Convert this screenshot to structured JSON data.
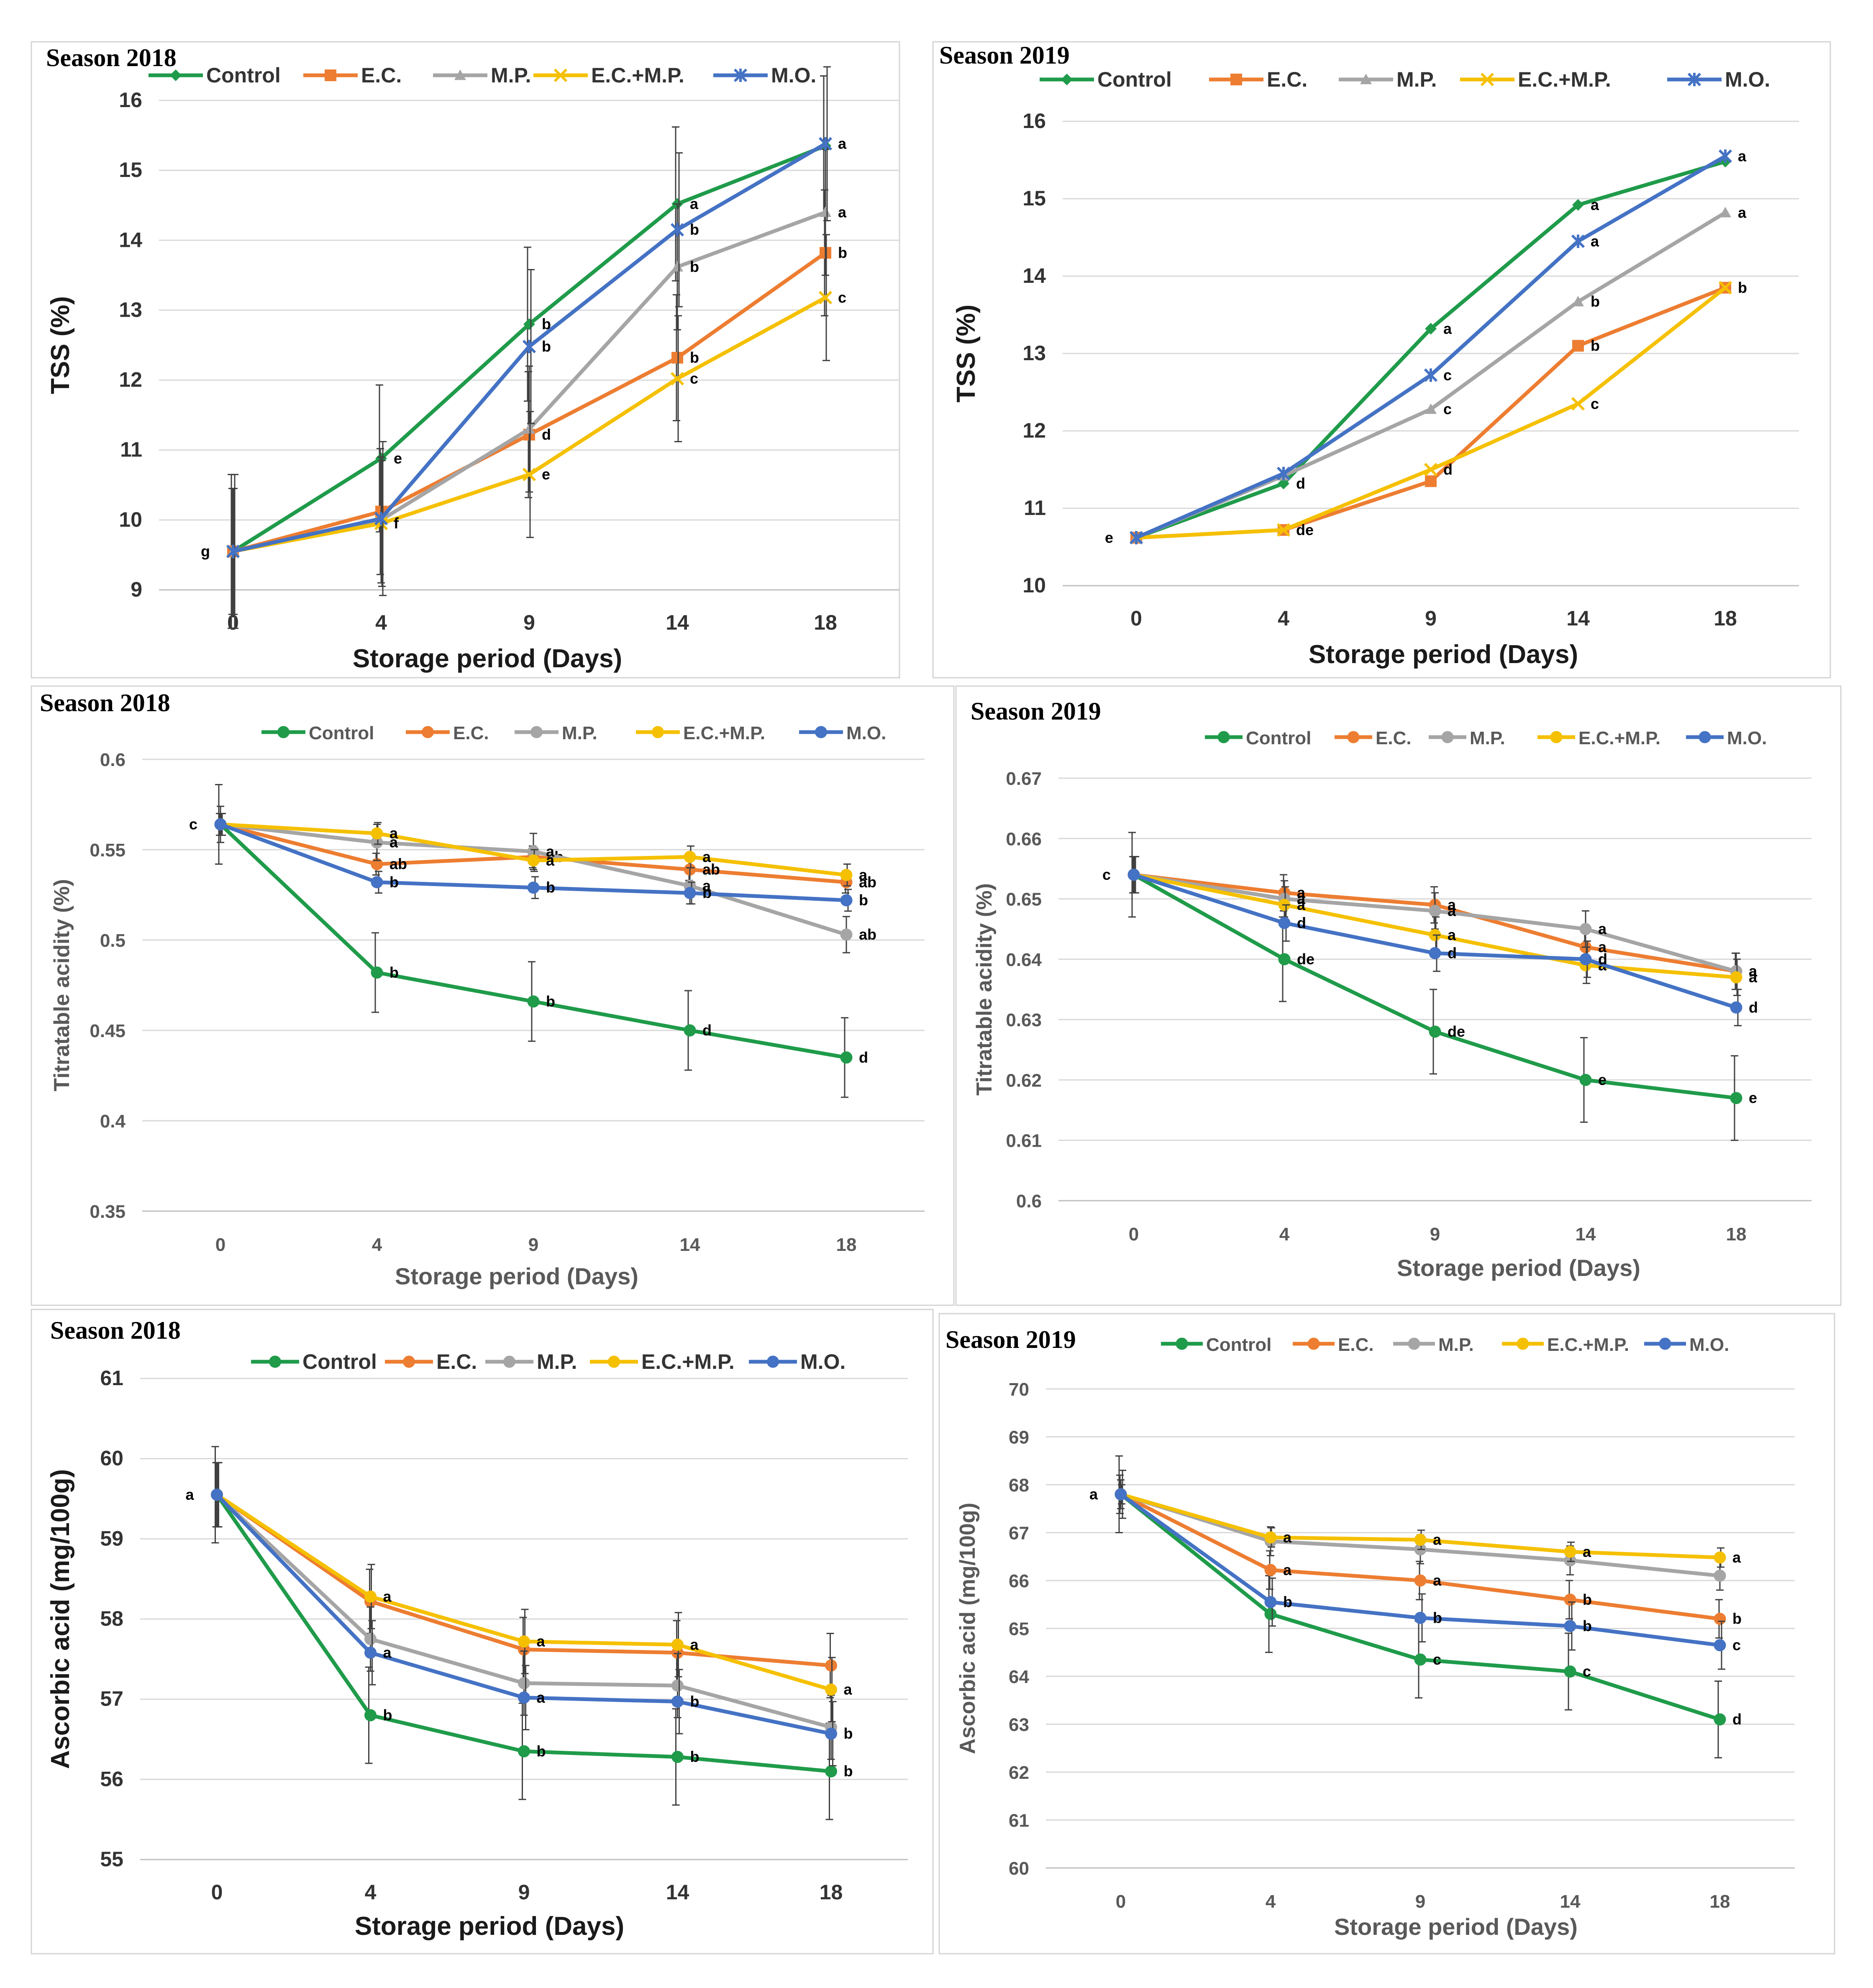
{
  "colors": {
    "Control": "#1f9b4a",
    "E.C.": "#ed7d31",
    "M.P.": "#a5a5a5",
    "E.C.+M.P.": "#f5c000",
    "M.O.": "#4472c4"
  },
  "chart_data": [
    {
      "type": "line",
      "id": "tss-2018",
      "title": "Season 2018",
      "xlabel": "Storage period (Days)",
      "ylabel": "TSS (%)",
      "categories": [
        "0",
        "4",
        "9",
        "14",
        "18"
      ],
      "ylim": [
        9,
        16
      ],
      "yticks": [
        "9",
        "10",
        "11",
        "12",
        "13",
        "14",
        "15",
        "16"
      ],
      "legend": [
        "Control",
        "E.C.",
        "M.P.",
        "E.C.+M.P.",
        "M.O."
      ],
      "series": [
        {
          "name": "Control",
          "values": [
            9.55,
            10.88,
            12.8,
            14.52,
            15.35
          ],
          "letters": [
            "g",
            "e",
            "b",
            "a",
            ""
          ],
          "error": [
            1.1,
            1.05,
            1.1,
            1.1,
            1.0
          ]
        },
        {
          "name": "E.C.",
          "values": [
            9.55,
            10.12,
            11.22,
            12.32,
            13.82
          ],
          "letters": [
            "",
            "",
            "d",
            "b",
            "b"
          ],
          "error": [
            0.9,
            0.9,
            0.9,
            0.9,
            0.9
          ]
        },
        {
          "name": "M.P.",
          "values": [
            9.55,
            10.0,
            11.3,
            13.62,
            14.4
          ],
          "letters": [
            "",
            "",
            "",
            "b",
            "a"
          ],
          "error": [
            0.9,
            0.9,
            0.9,
            0.9,
            0.9
          ]
        },
        {
          "name": "E.C.+M.P.",
          "values": [
            9.55,
            9.95,
            10.65,
            12.02,
            13.18
          ],
          "letters": [
            "",
            "f",
            "e",
            "c",
            "c"
          ],
          "error": [
            0.9,
            0.9,
            0.9,
            0.9,
            0.9
          ]
        },
        {
          "name": "M.O.",
          "values": [
            9.55,
            10.02,
            12.48,
            14.15,
            15.38
          ],
          "letters": [
            "",
            "",
            "b",
            "b",
            "a"
          ],
          "error": [
            1.1,
            1.1,
            1.1,
            1.1,
            1.1
          ]
        }
      ]
    },
    {
      "type": "line",
      "id": "tss-2019",
      "title": "Season 2019",
      "xlabel": "Storage period (Days)",
      "ylabel": "TSS (%)",
      "categories": [
        "0",
        "4",
        "9",
        "14",
        "18"
      ],
      "ylim": [
        10,
        16
      ],
      "yticks": [
        "10",
        "11",
        "12",
        "13",
        "14",
        "15",
        "16"
      ],
      "legend": [
        "Control",
        "E.C.",
        "M.P.",
        "E.C.+M.P.",
        "M.O."
      ],
      "series": [
        {
          "name": "Control",
          "values": [
            10.62,
            11.32,
            13.32,
            14.92,
            15.48
          ],
          "letters": [
            "e",
            "d",
            "a",
            "a",
            ""
          ],
          "error": []
        },
        {
          "name": "E.C.",
          "values": [
            10.62,
            10.72,
            11.35,
            13.1,
            13.85
          ],
          "letters": [
            "",
            "de",
            "",
            "b",
            "b"
          ],
          "error": []
        },
        {
          "name": "M.P.",
          "values": [
            10.62,
            11.42,
            12.28,
            13.67,
            14.82
          ],
          "letters": [
            "",
            "",
            "c",
            "b",
            "a"
          ],
          "error": []
        },
        {
          "name": "E.C.+M.P.",
          "values": [
            10.62,
            10.72,
            11.5,
            12.35,
            13.85
          ],
          "letters": [
            "",
            "",
            "d",
            "c",
            ""
          ],
          "error": []
        },
        {
          "name": "M.O.",
          "values": [
            10.62,
            11.45,
            12.72,
            14.45,
            15.55
          ],
          "letters": [
            "",
            "",
            "c",
            "a",
            "a"
          ],
          "error": []
        }
      ]
    },
    {
      "type": "line",
      "id": "ta-2018",
      "title": "Season 2018",
      "xlabel": "Storage period (Days)",
      "ylabel": "Titratable acidity (%)",
      "categories": [
        "0",
        "4",
        "9",
        "14",
        "18"
      ],
      "ylim": [
        0.35,
        0.6
      ],
      "yticks": [
        "0.35",
        "0.4",
        "0.45",
        "0.5",
        "0.55",
        "0.6"
      ],
      "legend": [
        "Control",
        "E.C.",
        "M.P.",
        "E.C.+M.P.",
        "M.O."
      ],
      "series": [
        {
          "name": "Control",
          "values": [
            0.564,
            0.482,
            0.466,
            0.45,
            0.435
          ],
          "letters": [
            "c",
            "b",
            "b",
            "d",
            "d"
          ],
          "error": [
            0.022,
            0.022,
            0.022,
            0.022,
            0.022
          ]
        },
        {
          "name": "E.C.",
          "values": [
            0.564,
            0.542,
            0.546,
            0.539,
            0.532
          ],
          "letters": [
            "",
            "ab",
            "ab",
            "ab",
            "ab"
          ],
          "error": [
            0.006,
            0.006,
            0.006,
            0.006,
            0.006
          ]
        },
        {
          "name": "M.P.",
          "values": [
            0.564,
            0.554,
            0.549,
            0.53,
            0.503
          ],
          "letters": [
            "",
            "a",
            "a",
            "a",
            "ab"
          ],
          "error": [
            0.01,
            0.01,
            0.01,
            0.01,
            0.01
          ]
        },
        {
          "name": "E.C.+M.P.",
          "values": [
            0.564,
            0.559,
            0.544,
            0.546,
            0.536
          ],
          "letters": [
            "",
            "a",
            "a",
            "a",
            "a"
          ],
          "error": [
            0.006,
            0.006,
            0.006,
            0.006,
            0.006
          ]
        },
        {
          "name": "M.O.",
          "values": [
            0.564,
            0.532,
            0.529,
            0.526,
            0.522
          ],
          "letters": [
            "",
            "b",
            "b",
            "b",
            "b"
          ],
          "error": [
            0.006,
            0.006,
            0.006,
            0.006,
            0.006
          ]
        }
      ]
    },
    {
      "type": "line",
      "id": "ta-2019",
      "title": "Season 2019",
      "xlabel": "Storage period (Days)",
      "ylabel": "Titratable acidity (%)",
      "categories": [
        "0",
        "4",
        "9",
        "14",
        "18"
      ],
      "ylim": [
        0.6,
        0.67
      ],
      "yticks": [
        "0.6",
        "0.61",
        "0.62",
        "0.63",
        "0.64",
        "0.65",
        "0.66",
        "0.67"
      ],
      "legend": [
        "Control",
        "E.C.",
        "M.P.",
        "E.C.+M.P.",
        "M.O."
      ],
      "series": [
        {
          "name": "Control",
          "values": [
            0.654,
            0.64,
            0.628,
            0.62,
            0.617
          ],
          "letters": [
            "c",
            "de",
            "de",
            "e",
            "e"
          ],
          "error": [
            0.007,
            0.007,
            0.007,
            0.007,
            0.007
          ]
        },
        {
          "name": "E.C.",
          "values": [
            0.654,
            0.651,
            0.649,
            0.642,
            0.638
          ],
          "letters": [
            "",
            "a",
            "a",
            "a",
            "a"
          ],
          "error": [
            0.003,
            0.003,
            0.003,
            0.003,
            0.003
          ]
        },
        {
          "name": "M.P.",
          "values": [
            0.654,
            0.65,
            0.648,
            0.645,
            0.638
          ],
          "letters": [
            "",
            "a",
            "a",
            "a",
            "a"
          ],
          "error": [
            0.003,
            0.003,
            0.003,
            0.003,
            0.003
          ]
        },
        {
          "name": "E.C.+M.P.",
          "values": [
            0.654,
            0.649,
            0.644,
            0.639,
            0.637
          ],
          "letters": [
            "",
            "a",
            "a",
            "a",
            "a"
          ],
          "error": [
            0.003,
            0.003,
            0.003,
            0.003,
            0.003
          ]
        },
        {
          "name": "M.O.",
          "values": [
            0.654,
            0.646,
            0.641,
            0.64,
            0.632
          ],
          "letters": [
            "",
            "d",
            "d",
            "d",
            "d"
          ],
          "error": [
            0.003,
            0.003,
            0.003,
            0.003,
            0.003
          ]
        }
      ]
    },
    {
      "type": "line",
      "id": "aa-2018",
      "title": "Season 2018",
      "xlabel": "Storage period (Days)",
      "ylabel": "Ascorbic acid  (mg/100g)",
      "categories": [
        "0",
        "4",
        "9",
        "14",
        "18"
      ],
      "ylim": [
        55,
        61
      ],
      "yticks": [
        "55",
        "56",
        "57",
        "58",
        "59",
        "60",
        "61"
      ],
      "legend": [
        "Control",
        "E.C.",
        "M.P.",
        "E.C.+M.P.",
        "M.O."
      ],
      "series": [
        {
          "name": "Control",
          "values": [
            59.55,
            56.8,
            56.35,
            56.28,
            56.1
          ],
          "letters": [
            "a",
            "b",
            "b",
            "b",
            "b"
          ],
          "error": [
            0.6,
            0.6,
            0.6,
            0.6,
            0.6
          ]
        },
        {
          "name": "E.C.",
          "values": [
            59.55,
            58.22,
            57.62,
            57.58,
            57.42
          ],
          "letters": [
            "",
            "",
            "",
            "",
            ""
          ],
          "error": [
            0.4,
            0.4,
            0.4,
            0.4,
            0.4
          ]
        },
        {
          "name": "M.P.",
          "values": [
            59.55,
            57.75,
            57.2,
            57.17,
            56.65
          ],
          "letters": [
            "",
            "",
            "",
            "",
            ""
          ],
          "error": [
            0.4,
            0.4,
            0.4,
            0.4,
            0.4
          ]
        },
        {
          "name": "E.C.+M.P.",
          "values": [
            59.55,
            58.28,
            57.72,
            57.68,
            57.12
          ],
          "letters": [
            "",
            "a",
            "a",
            "a",
            "a"
          ],
          "error": [
            0.4,
            0.4,
            0.4,
            0.4,
            0.4
          ]
        },
        {
          "name": "M.O.",
          "values": [
            59.55,
            57.58,
            57.02,
            56.97,
            56.57
          ],
          "letters": [
            "",
            "a",
            "a",
            "b",
            "b"
          ],
          "error": [
            0.4,
            0.4,
            0.4,
            0.4,
            0.4
          ]
        }
      ]
    },
    {
      "type": "line",
      "id": "aa-2019",
      "title": "Season 2019",
      "xlabel": "Storage period (Days)",
      "ylabel": "Ascorbic acid (mg/100g)",
      "categories": [
        "0",
        "4",
        "9",
        "14",
        "18"
      ],
      "ylim": [
        60,
        70
      ],
      "yticks": [
        "60",
        "61",
        "62",
        "63",
        "64",
        "65",
        "66",
        "67",
        "68",
        "69",
        "70"
      ],
      "legend": [
        "Control",
        "E.C.",
        "M.P.",
        "E.C.+M.P.",
        "M.O."
      ],
      "series": [
        {
          "name": "Control",
          "values": [
            67.8,
            65.3,
            64.35,
            64.1,
            63.1
          ],
          "letters": [
            "a",
            "",
            "c",
            "c",
            "d"
          ],
          "error": [
            0.8,
            0.8,
            0.8,
            0.8,
            0.8
          ]
        },
        {
          "name": "E.C.",
          "values": [
            67.8,
            66.22,
            66.0,
            65.6,
            65.2
          ],
          "letters": [
            "",
            "a",
            "a",
            "b",
            "b"
          ],
          "error": [
            0.4,
            0.4,
            0.4,
            0.4,
            0.4
          ]
        },
        {
          "name": "M.P.",
          "values": [
            67.8,
            66.82,
            66.65,
            66.42,
            66.1
          ],
          "letters": [
            "",
            "",
            "",
            "",
            ""
          ],
          "error": [
            0.3,
            0.3,
            0.3,
            0.3,
            0.3
          ]
        },
        {
          "name": "E.C.+M.P.",
          "values": [
            67.8,
            66.9,
            66.85,
            66.6,
            66.48
          ],
          "letters": [
            "",
            "a",
            "a",
            "a",
            "a"
          ],
          "error": [
            0.2,
            0.2,
            0.2,
            0.2,
            0.2
          ]
        },
        {
          "name": "M.O.",
          "values": [
            67.8,
            65.55,
            65.22,
            65.05,
            64.65
          ],
          "letters": [
            "",
            "b",
            "b",
            "b",
            "c"
          ],
          "error": [
            0.5,
            0.5,
            0.5,
            0.5,
            0.5
          ]
        }
      ]
    }
  ]
}
